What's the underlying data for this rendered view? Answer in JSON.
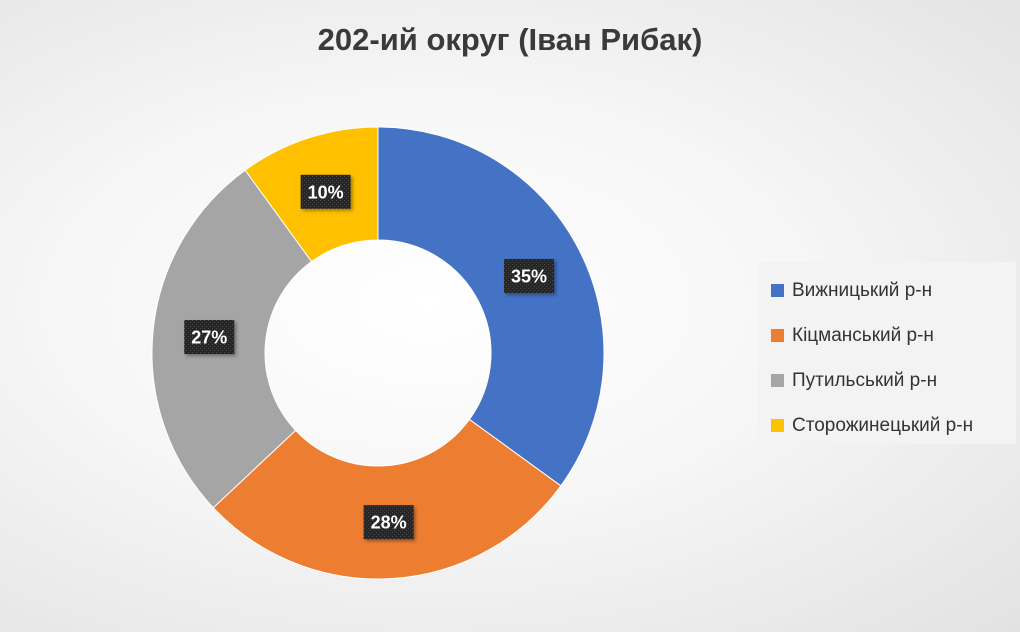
{
  "chart_data": {
    "type": "pie",
    "title": "202-ий округ (Іван Рибак)",
    "donut": true,
    "legend_position": "right",
    "slices": [
      {
        "label": "Вижницький р-н",
        "value": 35,
        "value_label": "35%",
        "color": "#4472C4"
      },
      {
        "label": "Кіцманський р-н",
        "value": 28,
        "value_label": "28%",
        "color": "#ED7D31"
      },
      {
        "label": "Путильський р-н",
        "value": 27,
        "value_label": "27%",
        "color": "#A5A5A5"
      },
      {
        "label": "Сторожинецький р-н",
        "value": 10,
        "value_label": "10%",
        "color": "#FFC000"
      }
    ]
  }
}
